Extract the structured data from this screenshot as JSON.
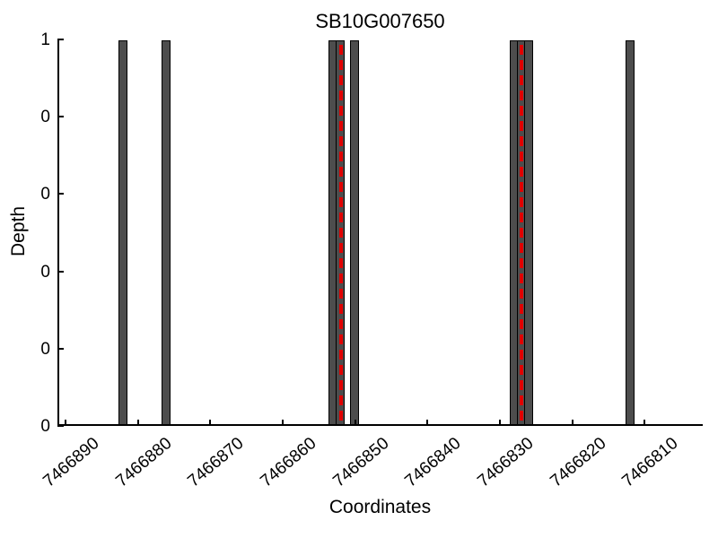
{
  "chart_data": {
    "type": "bar",
    "title": "SB10G007650",
    "xlabel": "Coordinates",
    "ylabel": "Depth",
    "x_axis_reversed": true,
    "xlim": [
      7466891.1,
      7466802.0
    ],
    "ylim": [
      0,
      1
    ],
    "grid": false,
    "legend": null,
    "x_ticks": [
      {
        "value": 7466890,
        "label": "7466890"
      },
      {
        "value": 7466880,
        "label": "7466880"
      },
      {
        "value": 7466870,
        "label": "7466870"
      },
      {
        "value": 7466860,
        "label": "7466860"
      },
      {
        "value": 7466850,
        "label": "7466850"
      },
      {
        "value": 7466840,
        "label": "7466840"
      },
      {
        "value": 7466830,
        "label": "7466830"
      },
      {
        "value": 7466820,
        "label": "7466820"
      },
      {
        "value": 7466810,
        "label": "7466810"
      }
    ],
    "y_ticks": [
      {
        "value": 0.0,
        "label": "0"
      },
      {
        "value": 0.2,
        "label": "0"
      },
      {
        "value": 0.4,
        "label": "0"
      },
      {
        "value": 0.6,
        "label": "0"
      },
      {
        "value": 0.8,
        "label": "0"
      },
      {
        "value": 1.0,
        "label": "1"
      }
    ],
    "bar_width": 1,
    "bar_color": "#4d4d4d",
    "bar_edge_color": "#000000",
    "bars": [
      {
        "x": 7466882,
        "depth": 1
      },
      {
        "x": 7466876,
        "depth": 1
      },
      {
        "x": 7466853,
        "depth": 1
      },
      {
        "x": 7466852,
        "depth": 1
      },
      {
        "x": 7466850,
        "depth": 1
      },
      {
        "x": 7466828,
        "depth": 1
      },
      {
        "x": 7466827,
        "depth": 1
      },
      {
        "x": 7466826,
        "depth": 1
      },
      {
        "x": 7466812,
        "depth": 1
      }
    ],
    "marker_lines": [
      {
        "x": 7466852,
        "color": "#e00000",
        "style": "dashed"
      },
      {
        "x": 7466827,
        "color": "#e00000",
        "style": "dashed"
      }
    ]
  }
}
